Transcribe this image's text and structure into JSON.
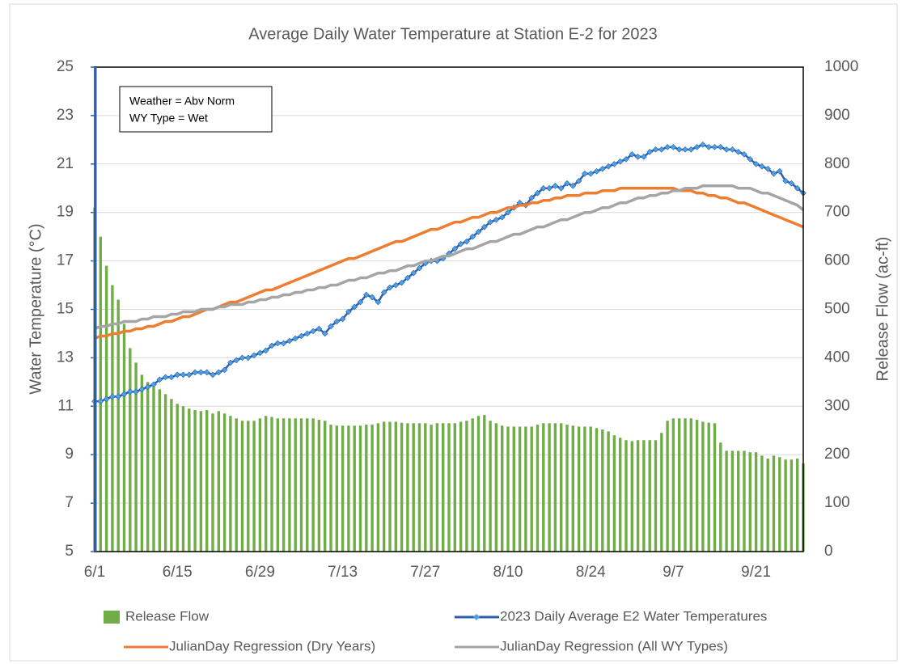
{
  "chart_data": {
    "type": "combo",
    "title": "Average Daily Water Temperature at Station E-2 for 2023",
    "ylabel": "Water Temperature (°C)",
    "y2label": "Release Flow (ac-ft)",
    "annotation": [
      "Weather = Abv Norm",
      "WY Type = Wet"
    ],
    "categories": [
      "6/1",
      null,
      null,
      null,
      null,
      null,
      null,
      null,
      null,
      null,
      null,
      null,
      null,
      null,
      "6/15",
      null,
      null,
      null,
      null,
      null,
      null,
      null,
      null,
      null,
      null,
      null,
      null,
      null,
      "6/29",
      null,
      null,
      null,
      null,
      null,
      null,
      null,
      null,
      null,
      null,
      null,
      null,
      null,
      "7/13",
      null,
      null,
      null,
      null,
      null,
      null,
      null,
      null,
      null,
      null,
      null,
      null,
      null,
      "7/27",
      null,
      null,
      null,
      null,
      null,
      null,
      null,
      null,
      null,
      null,
      null,
      null,
      null,
      "8/10",
      null,
      null,
      null,
      null,
      null,
      null,
      null,
      null,
      null,
      null,
      null,
      null,
      null,
      "8/24",
      null,
      null,
      null,
      null,
      null,
      null,
      null,
      null,
      null,
      null,
      null,
      null,
      null,
      "9/7",
      null,
      null,
      null,
      null,
      null,
      null,
      null,
      null,
      null,
      null,
      null,
      null,
      null,
      "9/21",
      null,
      null,
      null,
      null,
      null,
      null,
      null,
      null
    ],
    "ylim": [
      5,
      25
    ],
    "yticks": [
      5,
      7,
      9,
      11,
      13,
      15,
      17,
      19,
      21,
      23,
      25
    ],
    "y2lim": [
      0,
      1000
    ],
    "y2ticks": [
      0,
      100,
      200,
      300,
      400,
      500,
      600,
      700,
      800,
      900,
      1000
    ],
    "grid": true,
    "series": [
      {
        "name": "Release Flow",
        "type": "bar",
        "axis": "y2",
        "color": "#70ad47",
        "values": [
          710,
          650,
          590,
          550,
          520,
          470,
          420,
          390,
          365,
          350,
          340,
          335,
          325,
          315,
          305,
          300,
          295,
          292,
          290,
          292,
          285,
          290,
          285,
          280,
          275,
          270,
          270,
          270,
          275,
          280,
          278,
          275,
          275,
          275,
          275,
          275,
          275,
          275,
          272,
          270,
          262,
          260,
          260,
          260,
          260,
          260,
          262,
          262,
          265,
          268,
          268,
          268,
          266,
          265,
          265,
          265,
          265,
          262,
          265,
          265,
          265,
          265,
          268,
          270,
          275,
          280,
          282,
          270,
          265,
          260,
          258,
          258,
          258,
          258,
          258,
          262,
          265,
          265,
          265,
          265,
          262,
          260,
          258,
          258,
          258,
          255,
          252,
          248,
          240,
          235,
          230,
          228,
          230,
          230,
          230,
          230,
          245,
          270,
          275,
          275,
          275,
          275,
          272,
          268,
          266,
          265,
          225,
          208,
          208,
          208,
          208,
          205,
          205,
          198,
          192,
          198,
          195,
          190,
          190,
          192,
          182
        ]
      },
      {
        "name": "2023 Daily Average E2 Water Temperatures",
        "type": "line",
        "marker": "diamond",
        "color": "#2e5fae",
        "marker_color": "#4aa3e6",
        "values": [
          11.2,
          11.2,
          11.3,
          11.4,
          11.4,
          11.5,
          11.6,
          11.6,
          11.7,
          11.8,
          11.9,
          12.1,
          12.2,
          12.2,
          12.3,
          12.3,
          12.3,
          12.4,
          12.4,
          12.4,
          12.3,
          12.4,
          12.5,
          12.8,
          12.9,
          13.0,
          13.0,
          13.1,
          13.2,
          13.3,
          13.5,
          13.6,
          13.6,
          13.7,
          13.8,
          13.9,
          14.0,
          14.1,
          14.2,
          14.0,
          14.3,
          14.5,
          14.6,
          14.9,
          15.1,
          15.3,
          15.6,
          15.5,
          15.3,
          15.7,
          15.9,
          16.0,
          16.1,
          16.3,
          16.5,
          16.7,
          16.9,
          17.0,
          17.0,
          17.1,
          17.3,
          17.5,
          17.7,
          17.8,
          18.0,
          18.2,
          18.4,
          18.6,
          18.7,
          18.8,
          19.0,
          19.2,
          19.4,
          19.3,
          19.6,
          19.8,
          20.0,
          20.0,
          20.1,
          20.0,
          20.2,
          20.1,
          20.3,
          20.6,
          20.6,
          20.7,
          20.8,
          20.9,
          21.0,
          21.1,
          21.2,
          21.4,
          21.3,
          21.3,
          21.5,
          21.6,
          21.6,
          21.7,
          21.7,
          21.6,
          21.6,
          21.6,
          21.7,
          21.8,
          21.7,
          21.7,
          21.7,
          21.6,
          21.6,
          21.5,
          21.4,
          21.2,
          21.0,
          20.9,
          20.8,
          20.6,
          20.7,
          20.3,
          20.2,
          20.0,
          19.8
        ]
      },
      {
        "name": "JulianDay Regression (Dry Years)",
        "type": "line",
        "color": "#ed7d31",
        "values": [
          13.8,
          13.9,
          13.9,
          14.0,
          14.0,
          14.1,
          14.1,
          14.2,
          14.2,
          14.3,
          14.3,
          14.4,
          14.5,
          14.5,
          14.6,
          14.7,
          14.7,
          14.8,
          14.9,
          15.0,
          15.0,
          15.1,
          15.2,
          15.3,
          15.3,
          15.4,
          15.5,
          15.6,
          15.7,
          15.8,
          15.8,
          15.9,
          16.0,
          16.1,
          16.2,
          16.3,
          16.4,
          16.5,
          16.6,
          16.7,
          16.8,
          16.9,
          17.0,
          17.1,
          17.1,
          17.2,
          17.3,
          17.4,
          17.5,
          17.6,
          17.7,
          17.8,
          17.8,
          17.9,
          18.0,
          18.1,
          18.2,
          18.3,
          18.3,
          18.4,
          18.5,
          18.6,
          18.6,
          18.7,
          18.8,
          18.8,
          18.9,
          19.0,
          19.0,
          19.1,
          19.2,
          19.2,
          19.3,
          19.3,
          19.4,
          19.4,
          19.5,
          19.5,
          19.6,
          19.6,
          19.7,
          19.7,
          19.7,
          19.8,
          19.8,
          19.8,
          19.9,
          19.9,
          19.9,
          20.0,
          20.0,
          20.0,
          20.0,
          20.0,
          20.0,
          20.0,
          20.0,
          20.0,
          20.0,
          19.9,
          19.9,
          19.9,
          19.8,
          19.8,
          19.7,
          19.7,
          19.6,
          19.6,
          19.5,
          19.4,
          19.4,
          19.3,
          19.2,
          19.1,
          19.0,
          18.9,
          18.8,
          18.7,
          18.6,
          18.5,
          18.4
        ]
      },
      {
        "name": "JulianDay Regression (All WY Types)",
        "type": "line",
        "color": "#a5a5a5",
        "values": [
          14.2,
          14.3,
          14.3,
          14.4,
          14.4,
          14.5,
          14.5,
          14.5,
          14.6,
          14.6,
          14.7,
          14.7,
          14.7,
          14.8,
          14.8,
          14.9,
          14.9,
          14.9,
          15.0,
          15.0,
          15.0,
          15.1,
          15.1,
          15.2,
          15.2,
          15.2,
          15.3,
          15.3,
          15.4,
          15.4,
          15.5,
          15.5,
          15.6,
          15.6,
          15.7,
          15.7,
          15.8,
          15.8,
          15.9,
          15.9,
          16.0,
          16.0,
          16.1,
          16.2,
          16.2,
          16.3,
          16.3,
          16.4,
          16.5,
          16.5,
          16.6,
          16.6,
          16.7,
          16.8,
          16.8,
          16.9,
          17.0,
          17.0,
          17.1,
          17.2,
          17.2,
          17.3,
          17.4,
          17.5,
          17.5,
          17.6,
          17.7,
          17.8,
          17.8,
          17.9,
          18.0,
          18.1,
          18.1,
          18.2,
          18.3,
          18.4,
          18.4,
          18.5,
          18.6,
          18.7,
          18.7,
          18.8,
          18.9,
          19.0,
          19.0,
          19.1,
          19.2,
          19.2,
          19.3,
          19.4,
          19.4,
          19.5,
          19.6,
          19.6,
          19.7,
          19.7,
          19.8,
          19.8,
          19.9,
          19.9,
          20.0,
          20.0,
          20.0,
          20.1,
          20.1,
          20.1,
          20.1,
          20.1,
          20.1,
          20.0,
          20.0,
          20.0,
          19.9,
          19.8,
          19.8,
          19.7,
          19.6,
          19.5,
          19.4,
          19.3,
          19.1
        ]
      }
    ]
  }
}
